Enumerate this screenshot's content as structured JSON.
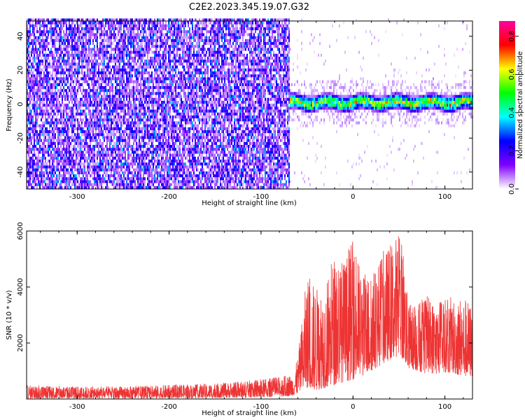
{
  "figure": {
    "title": "C2E2.2023.345.19.07.G32"
  },
  "chart_data": [
    {
      "type": "heatmap",
      "title": "C2E2.2023.345.19.07.G32",
      "xlabel": "Height of straight line (km)",
      "ylabel": "Frequency (Hz)",
      "xlim": [
        -355,
        130
      ],
      "ylim": [
        -50,
        49
      ],
      "xticks": [
        -300,
        -200,
        -100,
        0,
        100
      ],
      "yticks": [
        -40,
        -20,
        0,
        20,
        40
      ],
      "colorbar": {
        "label": "Normalized spectral amplitude",
        "range": [
          0.0,
          0.88
        ],
        "ticks": [
          0.0,
          0.2,
          0.4,
          0.6,
          0.8
        ],
        "colormap": [
          "#ffffff",
          "#8000ff",
          "#0000ff",
          "#00ffff",
          "#00ff00",
          "#ffff00",
          "#ff0000",
          "#ff00a0"
        ]
      },
      "noise_region": {
        "x_range": [
          -355,
          -70
        ],
        "freq_range": [
          -50,
          49
        ],
        "amplitude_range": [
          0.05,
          0.35
        ]
      },
      "signal_band": {
        "x_range": [
          -75,
          130
        ],
        "center_freq": 0,
        "half_width": 5,
        "peak_amplitude": 0.88
      },
      "grid": false
    },
    {
      "type": "line",
      "xlabel": "Height of straight line (km)",
      "ylabel": "SNR (10 * v/v)",
      "xlim": [
        -355,
        130
      ],
      "ylim": [
        0,
        6000
      ],
      "xticks": [
        -300,
        -200,
        -100,
        0,
        100
      ],
      "yticks": [
        2000,
        4000,
        6000
      ],
      "color": "#ee3333",
      "envelope": {
        "x": [
          -355,
          -300,
          -250,
          -200,
          -150,
          -100,
          -80,
          -65,
          -60,
          -50,
          -40,
          -30,
          -20,
          -10,
          0,
          10,
          20,
          30,
          40,
          45,
          50,
          55,
          60,
          70,
          80,
          90,
          100,
          110,
          120,
          130
        ],
        "lo": [
          20,
          20,
          20,
          30,
          40,
          60,
          80,
          120,
          200,
          400,
          300,
          400,
          500,
          600,
          700,
          800,
          1000,
          1200,
          1400,
          1500,
          1500,
          1400,
          1100,
          1000,
          900,
          900,
          950,
          900,
          800,
          800
        ],
        "hi": [
          500,
          450,
          450,
          500,
          550,
          700,
          800,
          900,
          1500,
          4500,
          4000,
          4200,
          5200,
          5000,
          5700,
          4500,
          4500,
          5200,
          5500,
          5800,
          6000,
          5500,
          3400,
          3500,
          3700,
          3500,
          3600,
          3700,
          3700,
          3400
        ]
      },
      "grid": false
    }
  ]
}
